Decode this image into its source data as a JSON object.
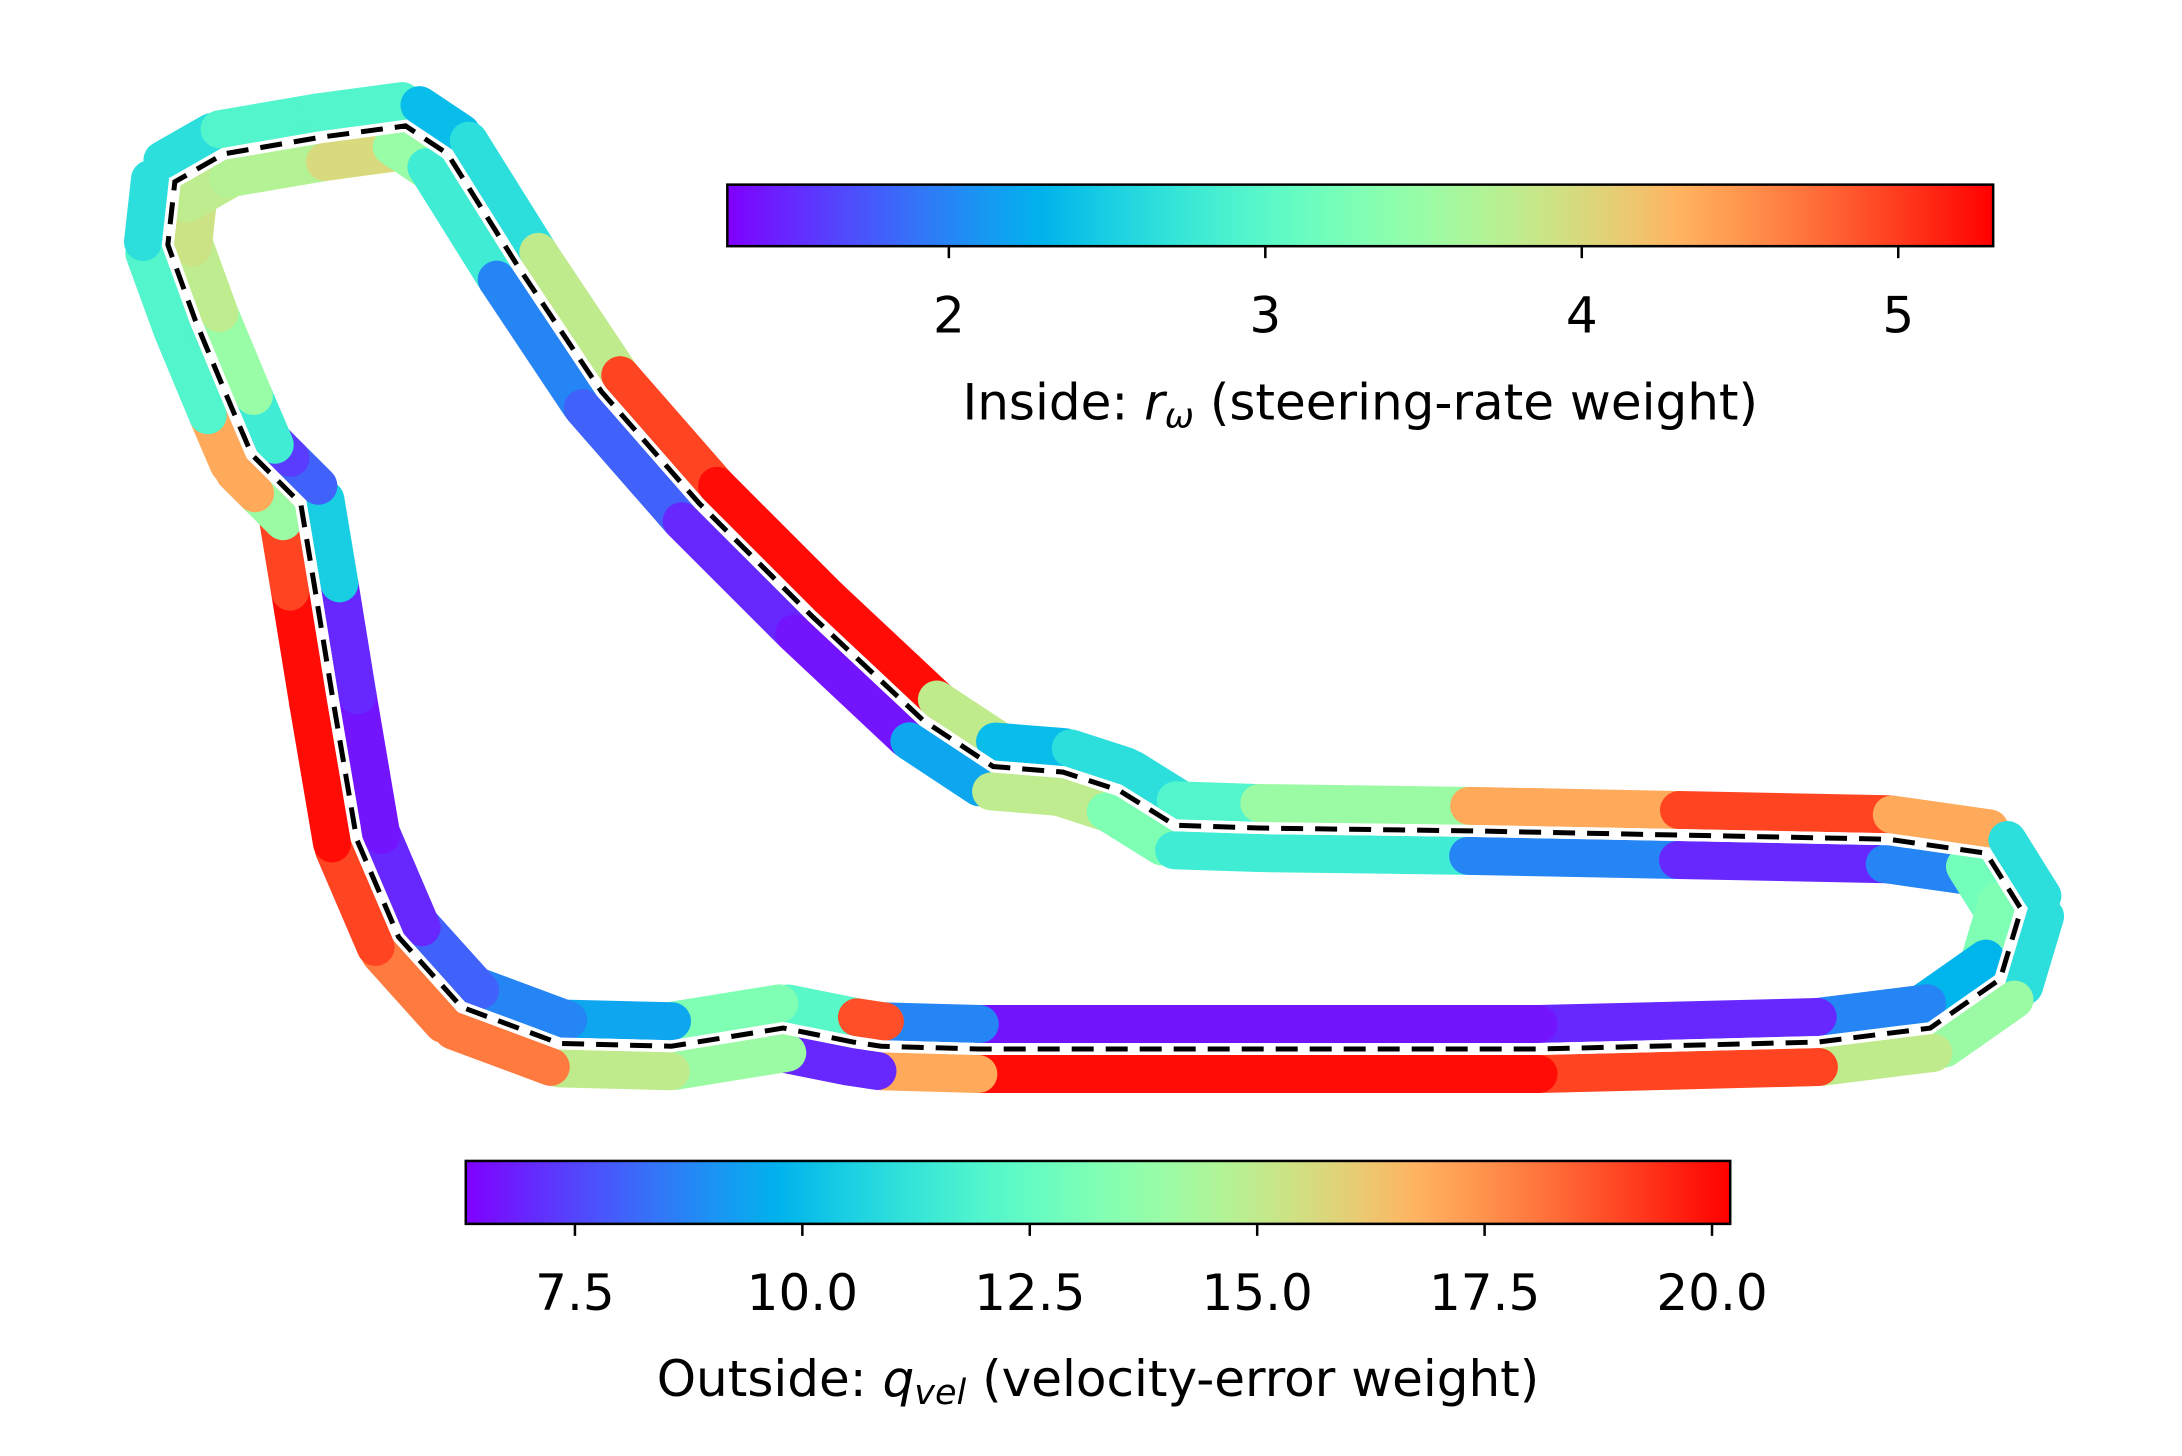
{
  "chart_data": {
    "type": "track",
    "colormap": "rainbow",
    "centerline": "dashed",
    "x": [
      610,
      560,
      480,
      400,
      330,
      285,
      255,
      238,
      225,
      215,
      195,
      180,
      165,
      140,
      120,
      125,
      160,
      230,
      290,
      320,
      370,
      430,
      500,
      580,
      660,
      710,
      760,
      800,
      840,
      900,
      1050,
      1200,
      1350,
      1420,
      1445,
      1430,
      1380,
      1300,
      1100,
      900,
      700,
      630
    ],
    "y": [
      745,
      735,
      748,
      746,
      720,
      670,
      600,
      500,
      420,
      360,
      340,
      325,
      290,
      230,
      175,
      130,
      110,
      98,
      90,
      110,
      190,
      280,
      360,
      440,
      515,
      548,
      552,
      565,
      590,
      592,
      594,
      597,
      600,
      610,
      650,
      700,
      735,
      745,
      750,
      750,
      750,
      748
    ],
    "series": [
      {
        "side": "inside",
        "values": [
          3.0,
          3.3,
          2.2,
          2.0,
          1.8,
          1.5,
          1.4,
          1.5,
          2.5,
          1.8,
          1.6,
          2.8,
          3.5,
          3.8,
          3.9,
          3.8,
          3.7,
          4.0,
          3.5,
          2.8,
          2.0,
          1.8,
          1.5,
          1.4,
          2.2,
          3.8,
          3.8,
          3.3,
          2.8,
          2.8,
          2.0,
          1.5,
          2.0,
          3.2,
          3.3,
          2.3,
          2.0,
          1.5,
          1.4,
          1.4,
          2.0,
          4.9
        ],
        "clim": [
          1.3,
          5.3
        ],
        "ticks": [
          2,
          3,
          4,
          5
        ],
        "label": {
          "prefix": "Inside: ",
          "symbol": "r",
          "subscript": "ω",
          "suffix": " (steering-rate weight)"
        }
      },
      {
        "side": "outside",
        "values": [
          7.0,
          14,
          15,
          18,
          18,
          19,
          20,
          20,
          19,
          14,
          17,
          17,
          12,
          12,
          11,
          11,
          12,
          12,
          10,
          11,
          15,
          19,
          20,
          20,
          15,
          10,
          11,
          11,
          12,
          14,
          17,
          19,
          17,
          11,
          11,
          14,
          15,
          19,
          20,
          20,
          17,
          7.0
        ],
        "clim": [
          6.3,
          20.2
        ],
        "ticks": [
          {
            "value": 7.5,
            "label": "7.5"
          },
          {
            "value": 10,
            "label": "10.0"
          },
          {
            "value": 12.5,
            "label": "12.5"
          },
          {
            "value": 15,
            "label": "15.0"
          },
          {
            "value": 17.5,
            "label": "17.5"
          },
          {
            "value": 20,
            "label": "20.0"
          }
        ],
        "label": {
          "prefix": "Outside: ",
          "symbol": "q",
          "subscript": "vel",
          "suffix": " (velocity-error weight)"
        }
      }
    ]
  }
}
